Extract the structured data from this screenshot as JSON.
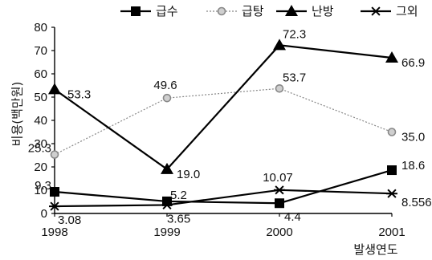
{
  "chart_data": {
    "type": "line",
    "title": "",
    "xlabel": "발생연도",
    "ylabel": "비용(백만원)",
    "categories": [
      "1998",
      "1999",
      "2000",
      "2001"
    ],
    "ylim": [
      0,
      80
    ],
    "yticks": [
      "0",
      "10",
      "20",
      "30",
      "40",
      "50",
      "60",
      "70",
      "80"
    ],
    "grid": false,
    "legend_position": "top",
    "series": [
      {
        "name": "급수",
        "marker": "square",
        "style": "solid",
        "color": "#000000",
        "values": [
          9.3,
          5.2,
          4.4,
          18.6
        ],
        "labels": [
          "9.3",
          "5.2",
          "4.4",
          "18.6"
        ]
      },
      {
        "name": "급탕",
        "marker": "circle",
        "style": "dashed",
        "color": "#888888",
        "values": [
          25.3,
          49.6,
          53.7,
          35.0
        ],
        "labels": [
          "25.3",
          "49.6",
          "53.7",
          "35.0"
        ]
      },
      {
        "name": "난방",
        "marker": "triangle",
        "style": "solid",
        "color": "#000000",
        "values": [
          53.3,
          19.0,
          72.3,
          66.9
        ],
        "labels": [
          "53.3",
          "19.0",
          "72.3",
          "66.9"
        ]
      },
      {
        "name": "그외",
        "marker": "asterisk",
        "style": "solid",
        "color": "#000000",
        "values": [
          3.08,
          3.65,
          10.07,
          8.556
        ],
        "labels": [
          "3.08",
          "3.65",
          "10.07",
          "8.556"
        ]
      }
    ]
  }
}
